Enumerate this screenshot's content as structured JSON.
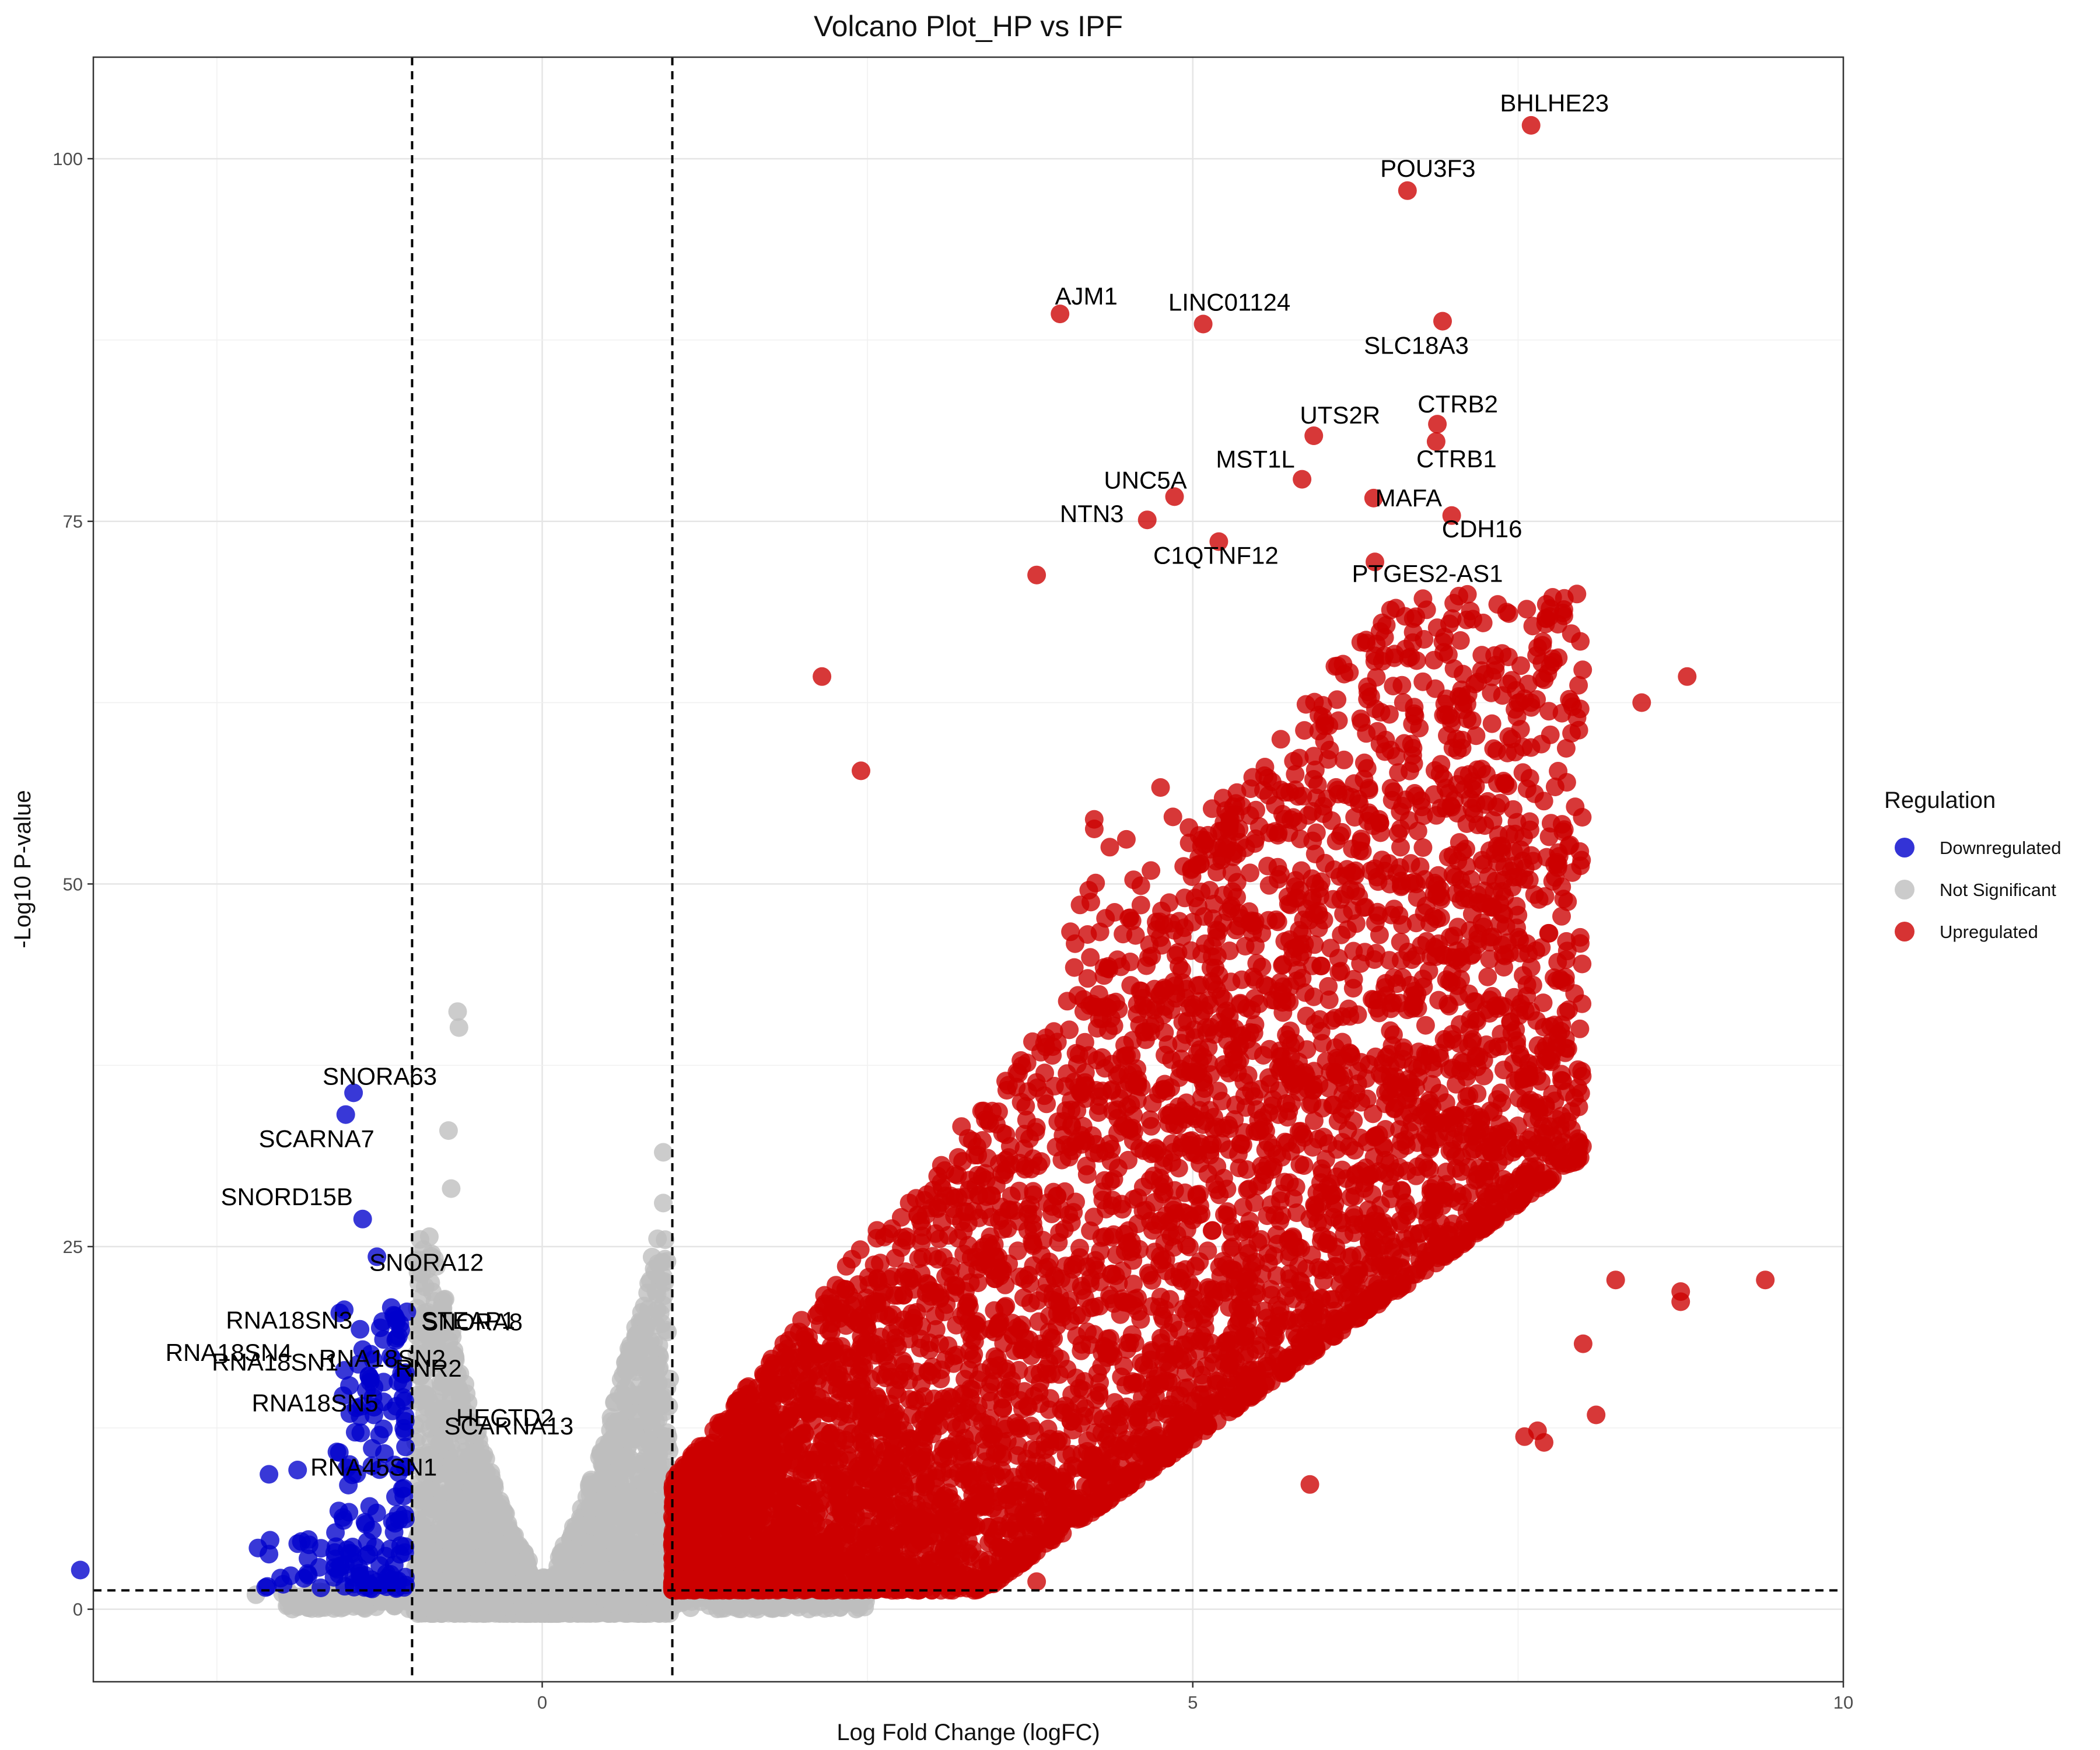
{
  "chart_data": {
    "type": "scatter",
    "title": "Volcano Plot_HP vs IPF",
    "xlabel": "Log Fold Change (logFC)",
    "ylabel": "-Log10 P-value",
    "xlim": [
      -3.45,
      10.0
    ],
    "ylim": [
      -5.0,
      107.0
    ],
    "x_ticks": [
      0,
      5,
      10
    ],
    "y_ticks": [
      0,
      25,
      50,
      75,
      100
    ],
    "grid": true,
    "thresholds": {
      "logfc_low": -1,
      "logfc_high": 1,
      "neg_log10_p": 1.3
    },
    "colors": {
      "Downregulated": "#0000cc",
      "Not Significant": "#bebebe",
      "Upregulated": "#cc0000"
    },
    "legend": {
      "title": "Regulation",
      "position": "right",
      "entries": [
        "Downregulated",
        "Not Significant",
        "Upregulated"
      ]
    },
    "labeled_points": [
      {
        "gene": "BHLHE23",
        "x": 7.6,
        "y": 102.3,
        "group": "Upregulated"
      },
      {
        "gene": "POU3F3",
        "x": 6.65,
        "y": 97.8,
        "group": "Upregulated"
      },
      {
        "gene": "AJM1",
        "x": 3.98,
        "y": 89.3,
        "group": "Upregulated"
      },
      {
        "gene": "LINC01124",
        "x": 5.08,
        "y": 88.6,
        "group": "Upregulated"
      },
      {
        "gene": "SLC18A3",
        "x": 6.92,
        "y": 88.8,
        "group": "Upregulated"
      },
      {
        "gene": "UTS2R",
        "x": 5.93,
        "y": 80.9,
        "group": "Upregulated"
      },
      {
        "gene": "CTRB2",
        "x": 6.88,
        "y": 81.7,
        "group": "Upregulated"
      },
      {
        "gene": "MST1L",
        "x": 5.84,
        "y": 77.9,
        "group": "Upregulated"
      },
      {
        "gene": "CTRB1",
        "x": 6.87,
        "y": 80.5,
        "group": "Upregulated"
      },
      {
        "gene": "UNC5A",
        "x": 4.86,
        "y": 76.7,
        "group": "Upregulated"
      },
      {
        "gene": "NTN3",
        "x": 4.65,
        "y": 75.1,
        "group": "Upregulated"
      },
      {
        "gene": "MAFA",
        "x": 6.39,
        "y": 76.6,
        "group": "Upregulated"
      },
      {
        "gene": "CDH16",
        "x": 6.99,
        "y": 75.4,
        "group": "Upregulated"
      },
      {
        "gene": "C1QTNF12",
        "x": 5.2,
        "y": 73.6,
        "group": "Upregulated"
      },
      {
        "gene": "PTGES2-AS1",
        "x": 6.4,
        "y": 72.2,
        "group": "Upregulated"
      },
      {
        "gene": "SNORA63",
        "x": -1.45,
        "y": 35.6,
        "group": "Downregulated"
      },
      {
        "gene": "SCARNA7",
        "x": -1.51,
        "y": 34.1,
        "group": "Downregulated"
      },
      {
        "gene": "SNORD15B",
        "x": -1.38,
        "y": 26.9,
        "group": "Downregulated"
      },
      {
        "gene": "SNORA12",
        "x": -1.27,
        "y": 24.3,
        "group": "Downregulated"
      },
      {
        "gene": "RNA18SN3",
        "x": -1.16,
        "y": 20.8,
        "group": "Downregulated"
      },
      {
        "gene": "SNORA8",
        "x": -1.12,
        "y": 19.8,
        "group": "Downregulated"
      },
      {
        "gene": "RNA18SN4",
        "x": -1.4,
        "y": 19.3,
        "group": "Downregulated"
      },
      {
        "gene": "RNA18SN2",
        "x": -1.22,
        "y": 18.6,
        "group": "Downregulated"
      },
      {
        "gene": "STEAP1",
        "x": -1.04,
        "y": 20.5,
        "group": "Downregulated"
      },
      {
        "gene": "RNA18SN1",
        "x": -1.38,
        "y": 17.9,
        "group": "Downregulated"
      },
      {
        "gene": "RNR2",
        "x": -1.3,
        "y": 17.2,
        "group": "Downregulated"
      },
      {
        "gene": "HECTD2",
        "x": -1.07,
        "y": 14.6,
        "group": "Downregulated"
      },
      {
        "gene": "RNA18SN5",
        "x": -1.32,
        "y": 15.9,
        "group": "Downregulated"
      },
      {
        "gene": "SCARNA13",
        "x": -1.22,
        "y": 14.3,
        "group": "Downregulated"
      },
      {
        "gene": "RNA45SN1",
        "x": -1.25,
        "y": 12.0,
        "group": "Downregulated"
      }
    ],
    "extra_points": [
      {
        "x": -3.55,
        "y": 2.7,
        "group": "Downregulated"
      },
      {
        "x": -2.1,
        "y": 9.3,
        "group": "Downregulated"
      },
      {
        "x": -1.88,
        "y": 9.6,
        "group": "Downregulated"
      },
      {
        "x": -2.1,
        "y": 3.8,
        "group": "Downregulated"
      },
      {
        "x": -1.8,
        "y": 3.5,
        "group": "Downregulated"
      },
      {
        "x": -1.7,
        "y": 4.2,
        "group": "Downregulated"
      },
      {
        "x": -1.6,
        "y": 2.2,
        "group": "Downregulated"
      },
      {
        "x": -1.55,
        "y": 3.0,
        "group": "Downregulated"
      },
      {
        "x": -0.65,
        "y": 41.2,
        "group": "Not Significant"
      },
      {
        "x": -0.64,
        "y": 40.1,
        "group": "Not Significant"
      },
      {
        "x": -0.72,
        "y": 33.0,
        "group": "Not Significant"
      },
      {
        "x": -0.7,
        "y": 29.0,
        "group": "Not Significant"
      },
      {
        "x": -2.2,
        "y": 1.0,
        "group": "Not Significant"
      },
      {
        "x": -1.55,
        "y": 0.6,
        "group": "Not Significant"
      },
      {
        "x": 0.93,
        "y": 31.5,
        "group": "Not Significant"
      },
      {
        "x": 0.93,
        "y": 28.0,
        "group": "Not Significant"
      },
      {
        "x": 2.15,
        "y": 64.3,
        "group": "Upregulated"
      },
      {
        "x": 2.45,
        "y": 57.8,
        "group": "Upregulated"
      },
      {
        "x": 3.8,
        "y": 71.3,
        "group": "Upregulated"
      },
      {
        "x": 8.8,
        "y": 64.3,
        "group": "Upregulated"
      },
      {
        "x": 8.45,
        "y": 62.5,
        "group": "Upregulated"
      },
      {
        "x": 9.4,
        "y": 22.7,
        "group": "Upregulated"
      },
      {
        "x": 8.75,
        "y": 21.9,
        "group": "Upregulated"
      },
      {
        "x": 8.75,
        "y": 21.2,
        "group": "Upregulated"
      },
      {
        "x": 8.25,
        "y": 22.7,
        "group": "Upregulated"
      },
      {
        "x": 8.1,
        "y": 13.4,
        "group": "Upregulated"
      },
      {
        "x": 8.0,
        "y": 18.3,
        "group": "Upregulated"
      },
      {
        "x": 7.55,
        "y": 11.9,
        "group": "Upregulated"
      },
      {
        "x": 7.65,
        "y": 12.3,
        "group": "Upregulated"
      },
      {
        "x": 7.7,
        "y": 11.5,
        "group": "Upregulated"
      },
      {
        "x": 5.9,
        "y": 8.6,
        "group": "Upregulated"
      },
      {
        "x": 3.8,
        "y": 1.9,
        "group": "Upregulated"
      }
    ]
  }
}
